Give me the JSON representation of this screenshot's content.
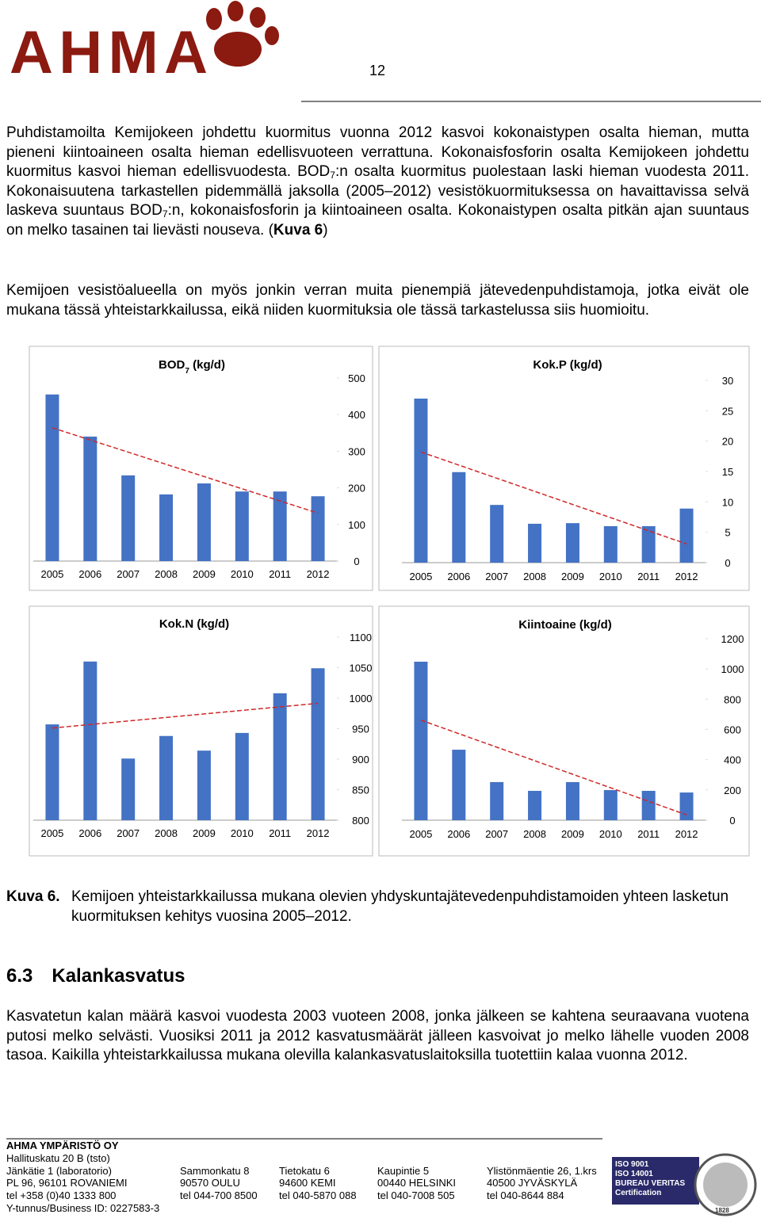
{
  "header": {
    "logo": "AHMA",
    "page_number": "12"
  },
  "paragraphs": [
    [
      {
        "text": "Puhdistamoilta Kemijokeen johdettu kuormitus vuonna 2012 kasvoi kokonaistypen osalta hieman, mutta pieneni kiintoaineen osalta hieman edellisvuoteen verrattuna. Kokonaisfosforin osalta Kemijokeen johdettu kuormitus kasvoi hieman edellisvuodesta. BOD"
      },
      {
        "text": "7",
        "style": "sub"
      },
      {
        "text": ":n osalta kuormitus puolestaan laski hieman vuodesta 2011. Kokonaisuutena tarkastellen pidemmällä jaksolla (2005–2012) vesistökuormituksessa on havaittavissa selvä laskeva suuntaus BOD"
      },
      {
        "text": "7",
        "style": "sub"
      },
      {
        "text": ":n, kokonaisfosforin ja kiintoaineen osalta. Kokonaistypen osalta pitkän ajan suuntaus on melko tasainen tai lievästi nouseva. ("
      },
      {
        "text": "Kuva 6",
        "style": "bold"
      },
      {
        "text": ")"
      }
    ],
    [
      {
        "text": "Kemijoen vesistöalueella on myös jonkin verran muita pienempiä jätevedenpuhdistamoja, jotka eivät ole mukana tässä yhteistarkkailussa, eikä niiden kuormituksia ole tässä tarkastelussa siis huomioitu."
      }
    ]
  ],
  "chart_data": [
    {
      "type": "bar",
      "title": [
        {
          "text": "BOD"
        },
        {
          "text": "7",
          "style": "sub"
        },
        {
          "text": " (kg/d)"
        }
      ],
      "categories": [
        "2005",
        "2006",
        "2007",
        "2008",
        "2009",
        "2010",
        "2011",
        "2012"
      ],
      "values": [
        455,
        340,
        234,
        182,
        212,
        190,
        190,
        177
      ],
      "color": "#4472c4",
      "trendline": true,
      "trend_color": "#d02828",
      "ylim": [
        0,
        500
      ],
      "yticks": [
        0,
        100,
        200,
        300,
        400,
        500
      ]
    },
    {
      "type": "bar",
      "title": [
        {
          "text": "Kok.P",
          "style": "bold"
        },
        {
          "text": "  (kg/d)"
        }
      ],
      "categories": [
        "2005",
        "2006",
        "2007",
        "2008",
        "2009",
        "2010",
        "2011",
        "2012"
      ],
      "values": [
        27,
        14.9,
        9.5,
        6.4,
        6.5,
        6.0,
        6.0,
        8.9
      ],
      "color": "#4472c4",
      "trendline": true,
      "trend_color": "#d02828",
      "ylim": [
        0,
        30
      ],
      "yticks": [
        0,
        5,
        10,
        15,
        20,
        25,
        30
      ]
    },
    {
      "type": "bar",
      "title": [
        {
          "text": "Kok.N (kg/d)"
        }
      ],
      "categories": [
        "2005",
        "2006",
        "2007",
        "2008",
        "2009",
        "2010",
        "2011",
        "2012"
      ],
      "values": [
        957,
        1060,
        901,
        938,
        914,
        943,
        1008,
        1049
      ],
      "color": "#4472c4",
      "trendline": true,
      "trend_color": "#d02828",
      "ylim": [
        800,
        1100
      ],
      "yticks": [
        800,
        850,
        900,
        950,
        1000,
        1050,
        1100
      ]
    },
    {
      "type": "bar",
      "title": [
        {
          "text": "Kiintoaine (kg/d)"
        }
      ],
      "categories": [
        "2005",
        "2006",
        "2007",
        "2008",
        "2009",
        "2010",
        "2011",
        "2012"
      ],
      "values": [
        1048,
        466,
        252,
        194,
        252,
        199,
        194,
        183
      ],
      "color": "#4472c4",
      "trendline": true,
      "trend_color": "#d02828",
      "ylim": [
        0,
        1200
      ],
      "yticks": [
        0,
        200,
        400,
        600,
        800,
        1000,
        1200
      ]
    }
  ],
  "caption": {
    "label": "Kuva 6.",
    "text": "Kemijoen yhteistarkkailussa mukana olevien yhdyskuntajätevedenpuhdistamoiden yhteen lasketun kuormituksen kehitys vuosina 2005–2012."
  },
  "section": {
    "number": "6.3",
    "title": "Kalankasvatus",
    "text": "Kasvatetun kalan määrä kasvoi vuodesta 2003 vuoteen 2008, jonka jälkeen se kahtena seuraavana vuotena putosi melko selvästi. Vuosiksi 2011 ja 2012 kasvatusmäärät jälleen kasvoivat jo melko lähelle vuoden 2008 tasoa. Kaikilla yhteistarkkailussa mukana olevilla kalankasvatuslaitoksilla tuotettiin kalaa vuonna 2012."
  },
  "footer": {
    "company": "AHMA YMPÄRISTÖ OY",
    "head_office": "Hallituskatu 20 B (tsto)",
    "columns": [
      [
        "Jänkätie 1 (laboratorio)",
        "PL 96, 96101 ROVANIEMI",
        "tel +358 (0)40 1333 800"
      ],
      [
        "Sammonkatu 8",
        "90570 OULU",
        "tel 044-700 8500"
      ],
      [
        "Tietokatu 6",
        "94600 KEMI",
        "tel 040-5870 088"
      ],
      [
        "Kaupintie 5",
        "00440 HELSINKI",
        "tel 040-7008 505"
      ],
      [
        "Ylistönmäentie 26, 1.krs",
        "40500 JYVÄSKYLÄ",
        "tel 040-8644 884"
      ]
    ],
    "business_id": "Y-tunnus/Business ID: 0227583-3",
    "certification": [
      "ISO 9001",
      "ISO 14001",
      "BUREAU VERITAS",
      "Certification",
      "1828"
    ]
  }
}
